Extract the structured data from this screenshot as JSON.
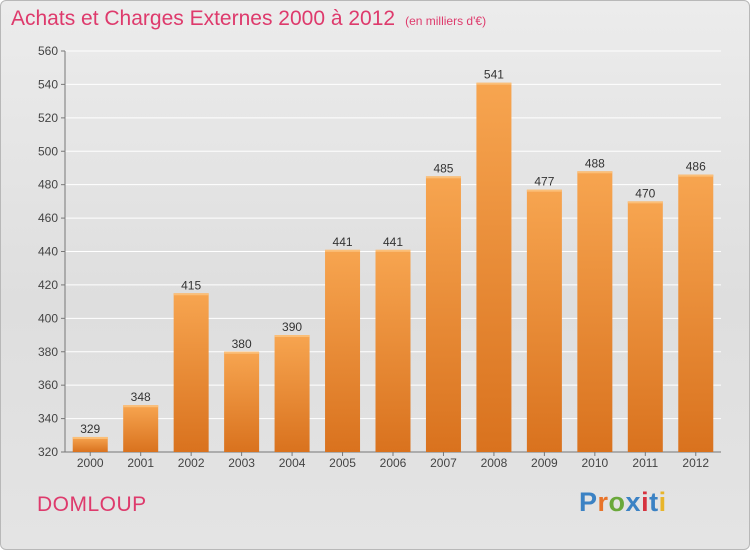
{
  "header": {
    "title": "Achats et Charges Externes 2000 à 2012",
    "subtitle": "(en milliers d'€)"
  },
  "footer": {
    "city": "DOMLOUP",
    "logo_text": "Proxiti",
    "logo_colors": [
      "#3b82c4",
      "#e8742a",
      "#6aa83a",
      "#3b82c4",
      "#d6323e",
      "#3b82c4",
      "#e8b52a"
    ]
  },
  "colors": {
    "bar_top": "#f7a550",
    "bar_bottom": "#d9721e",
    "title": "#de3a6c",
    "grid": "#ffffff"
  },
  "chart_data": {
    "type": "bar",
    "title": "Achats et Charges Externes 2000 à 2012",
    "xlabel": "",
    "ylabel": "",
    "categories": [
      "2000",
      "2001",
      "2002",
      "2003",
      "2004",
      "2005",
      "2006",
      "2007",
      "2008",
      "2009",
      "2010",
      "2011",
      "2012"
    ],
    "values": [
      329,
      348,
      415,
      380,
      390,
      441,
      441,
      485,
      541,
      477,
      488,
      470,
      486
    ],
    "ylim": [
      320,
      560
    ],
    "yticks": [
      320,
      340,
      360,
      380,
      400,
      420,
      440,
      460,
      480,
      500,
      520,
      540,
      560
    ],
    "grid": true,
    "legend": "none"
  }
}
